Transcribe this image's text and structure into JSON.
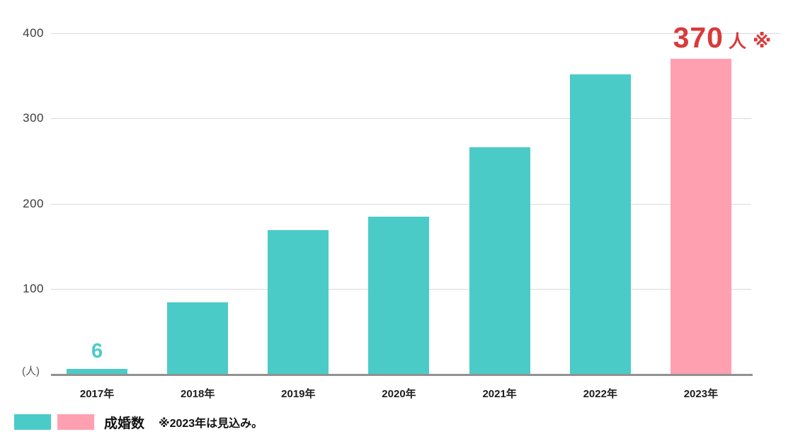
{
  "chart_data": {
    "type": "bar",
    "title": "",
    "categories": [
      "2017年",
      "2018年",
      "2019年",
      "2020年",
      "2021年",
      "2022年",
      "2023年"
    ],
    "series": [
      {
        "name": "成婚数",
        "values": [
          6,
          84,
          169,
          185,
          266,
          352,
          370
        ]
      }
    ],
    "ylim": [
      0,
      400
    ],
    "yticks": [
      100,
      200,
      300,
      400
    ],
    "y_unit_label": "(人)",
    "grid": true,
    "legend_position": "bottom-left",
    "bar_color_default": "#4bcbc8",
    "bar_color_forecast": "#ffa0b1",
    "forecast_index": 6,
    "forecast_label": {
      "value": "370",
      "unit": "人",
      "mark": "※"
    },
    "forecast_label_color": "#d93a3a",
    "small_bar_label_color": "#4bcbc8"
  },
  "legend": {
    "series_label": "成婚数",
    "note": "※2023年は見込み。",
    "swatch_colors": [
      "#4bcbc8",
      "#ffa0b1"
    ]
  },
  "colors": {
    "background": "#ffffff",
    "gridline": "#dadada",
    "axis_line": "#919191",
    "y_tick_text": "#3c3c3c",
    "x_label_text": "#1d1d1d",
    "bar_value_text": "#ffffff"
  }
}
